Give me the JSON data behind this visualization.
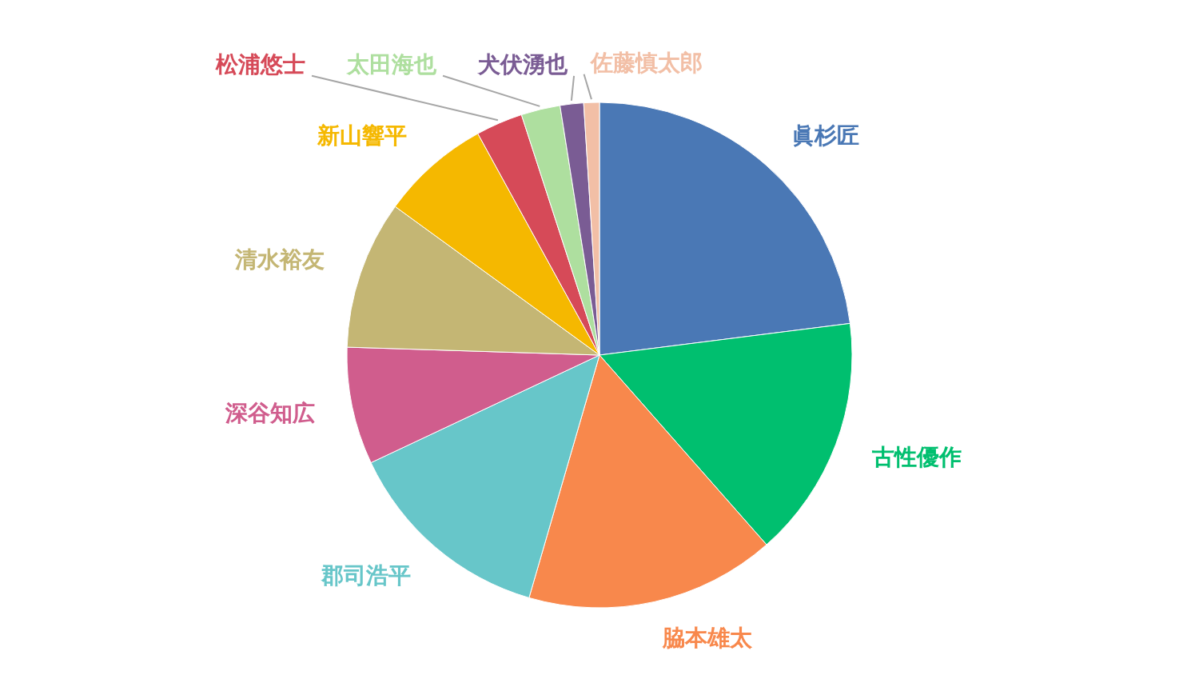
{
  "chart_data": {
    "type": "pie",
    "categories": [
      "眞杉匠",
      "古性優作",
      "脇本雄太",
      "郡司浩平",
      "深谷知広",
      "清水裕友",
      "新山響平",
      "松浦悠士",
      "太田海也",
      "犬伏湧也",
      "佐藤慎太郎"
    ],
    "values": [
      23,
      15.5,
      16,
      13.5,
      7.5,
      9.5,
      7,
      3,
      2.5,
      1.5,
      1
    ],
    "colors": [
      "#4a78b5",
      "#00bf6f",
      "#f8884c",
      "#67c6c9",
      "#d05d8d",
      "#c4b674",
      "#f5b800",
      "#d64a58",
      "#aedf9f",
      "#7a5c94",
      "#f2bfa6"
    ]
  }
}
